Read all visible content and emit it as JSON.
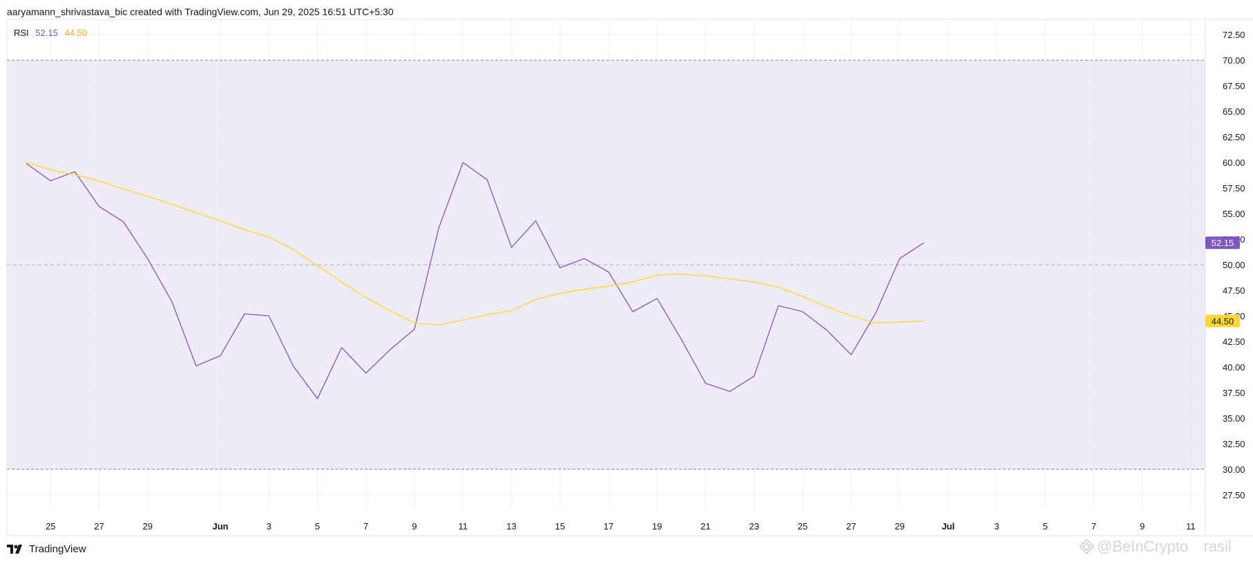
{
  "header": {
    "attribution": "aaryamann_shrivastava_bic created with TradingView.com, Jun 29, 2025 16:51 UTC+5:30"
  },
  "legend": {
    "indicator": "RSI",
    "rsi_value": "52.15",
    "ma_value": "44.50"
  },
  "footer": {
    "brand": "TradingView"
  },
  "watermark": {
    "text": "@BeInCrypto",
    "suffix": "rasil"
  },
  "colors": {
    "rsi": "#7e57c2",
    "ma": "#fdd835",
    "band": "#efebf8",
    "grid": "#f0f3fa",
    "axis_text": "#131722",
    "dashed": "#787b86"
  },
  "chart_data": {
    "type": "line",
    "ylim": [
      26,
      74
    ],
    "y_ticks": [
      "27.50",
      "30.00",
      "32.50",
      "35.00",
      "37.50",
      "40.00",
      "42.50",
      "45.00",
      "47.50",
      "50.00",
      "52.50",
      "55.00",
      "57.50",
      "60.00",
      "62.50",
      "65.00",
      "67.50",
      "70.00",
      "72.50"
    ],
    "y_tick_values": [
      27.5,
      30,
      32.5,
      35,
      37.5,
      40,
      42.5,
      45,
      47.5,
      50,
      52.5,
      55,
      57.5,
      60,
      62.5,
      65,
      67.5,
      70,
      72.5
    ],
    "x_ticks": [
      "25",
      "27",
      "29",
      "Jun",
      "3",
      "5",
      "7",
      "9",
      "11",
      "13",
      "15",
      "17",
      "19",
      "21",
      "23",
      "25",
      "27",
      "29",
      "Jul",
      "3",
      "5",
      "7",
      "9",
      "11"
    ],
    "x_tick_index": [
      1,
      3,
      5,
      8,
      10,
      12,
      14,
      16,
      18,
      20,
      22,
      24,
      26,
      28,
      30,
      32,
      34,
      36,
      38,
      40,
      42,
      44,
      46,
      48
    ],
    "x_range": [
      -0.8,
      48.6
    ],
    "bold_ticks": [
      "Jun",
      "Jul"
    ],
    "band": [
      30,
      70
    ],
    "levels": [
      30,
      50,
      70
    ],
    "series": [
      {
        "name": "RSI",
        "color": "#7e57c2",
        "values": [
          59.9,
          58.2,
          59.1,
          55.7,
          54.2,
          50.6,
          46.4,
          40.1,
          41.1,
          45.2,
          45.0,
          40.1,
          36.9,
          41.9,
          39.4,
          41.7,
          43.7,
          53.6,
          60.0,
          58.3,
          51.7,
          54.3,
          49.7,
          50.6,
          49.3,
          45.4,
          46.7,
          42.7,
          38.4,
          37.6,
          39.1,
          46.0,
          45.4,
          43.6,
          41.2,
          45.2,
          50.6,
          52.15
        ]
      },
      {
        "name": "MA",
        "color": "#fdd835",
        "values": [
          60.0,
          59.3,
          58.8,
          58.2,
          57.4,
          56.7,
          55.9,
          55.1,
          54.3,
          53.4,
          52.7,
          51.5,
          49.9,
          48.3,
          46.8,
          45.5,
          44.3,
          44.1,
          44.6,
          45.1,
          45.5,
          46.6,
          47.2,
          47.6,
          47.9,
          48.3,
          49.0,
          49.1,
          48.9,
          48.6,
          48.3,
          47.8,
          46.9,
          45.9,
          45.0,
          44.3,
          44.4,
          44.5
        ]
      }
    ],
    "last_labels": [
      {
        "series": "RSI",
        "text": "52.15",
        "value": 52.15,
        "bg": "#7e57c2",
        "fg": "#ffffff"
      },
      {
        "series": "MA",
        "text": "44.50",
        "value": 44.5,
        "bg": "#fdd835",
        "fg": "#131722"
      }
    ]
  }
}
